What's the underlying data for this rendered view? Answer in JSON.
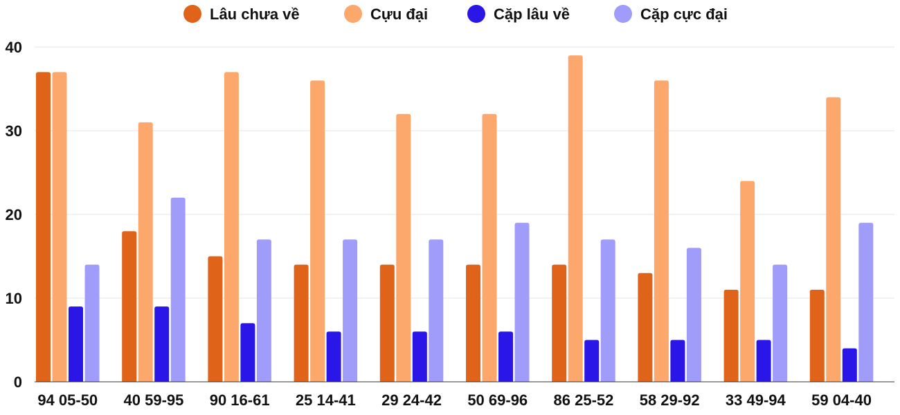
{
  "chart_data": {
    "type": "bar",
    "title": "",
    "xlabel": "",
    "ylabel": "",
    "ylim": [
      0,
      40
    ],
    "yticks": [
      0,
      10,
      20,
      30,
      40
    ],
    "grid": true,
    "legend_position": "top-center",
    "categories": [
      "94 05-50",
      "40 59-95",
      "90 16-61",
      "25 14-41",
      "29 24-42",
      "50 69-96",
      "86 25-52",
      "58 29-92",
      "33 49-94",
      "59 04-40"
    ],
    "series": [
      {
        "name": "Lâu chưa về",
        "color": "#e0631a",
        "values": [
          37,
          18,
          15,
          14,
          14,
          14,
          14,
          13,
          11,
          11
        ]
      },
      {
        "name": "Cựu đại",
        "color": "#fca76c",
        "values": [
          37,
          31,
          37,
          36,
          32,
          32,
          39,
          36,
          24,
          34
        ]
      },
      {
        "name": "Cặp lâu về",
        "color": "#2a16e6",
        "values": [
          9,
          9,
          7,
          6,
          6,
          6,
          5,
          5,
          5,
          4
        ]
      },
      {
        "name": "Cặp cực đại",
        "color": "#a09cfa",
        "values": [
          14,
          22,
          17,
          17,
          17,
          19,
          17,
          16,
          14,
          19
        ]
      }
    ]
  }
}
